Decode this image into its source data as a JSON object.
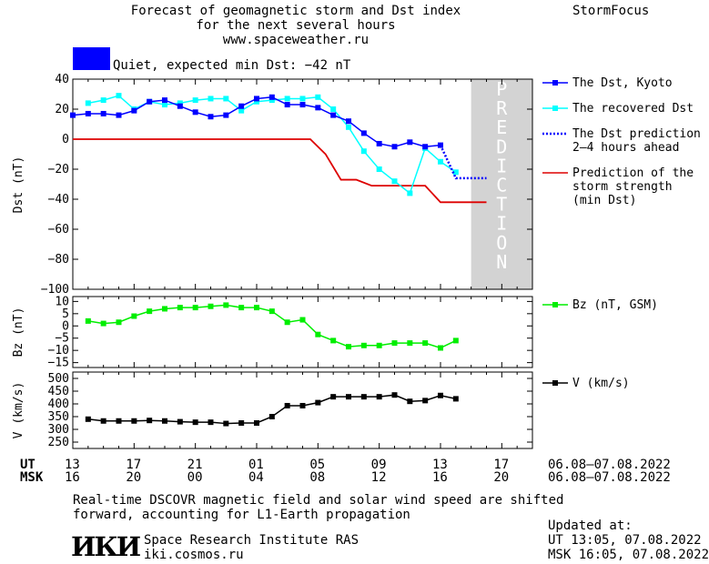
{
  "header": {
    "title_line1": "Forecast of geomagnetic storm and Dst index",
    "title_line2": "for the next several hours",
    "url": "www.spaceweather.ru",
    "brand": "StormFocus"
  },
  "status": {
    "text": "Quiet, expected min Dst: −42 nT",
    "color": "#0000ff"
  },
  "prediction_label": "PREDICTION",
  "colors": {
    "dst": "#0000ff",
    "recovered": "#00ffff",
    "prediction_line": "#dd0000",
    "bz": "#00ee00",
    "v": "#000000",
    "prediction_band": "#d3d3d3"
  },
  "chart_data": [
    {
      "type": "line",
      "ylabel": "Dst (nT)",
      "ylim": [
        -100,
        40
      ],
      "yticks": [
        40,
        20,
        0,
        -20,
        -40,
        -60,
        -80,
        -100
      ],
      "x_hours": [
        0,
        1,
        2,
        3,
        4,
        5,
        6,
        7,
        8,
        9,
        10,
        11,
        12,
        13,
        14,
        15,
        16,
        17,
        18,
        19,
        20,
        21,
        22,
        23,
        24,
        25,
        26,
        27
      ],
      "series": [
        {
          "name": "The Dst, Kyoto",
          "x": [
            0,
            1,
            2,
            3,
            4,
            5,
            6,
            7,
            8,
            9,
            10,
            11,
            12,
            13,
            14,
            15,
            16,
            17,
            18,
            19,
            20,
            21,
            22,
            23,
            24
          ],
          "values": [
            16,
            17,
            17,
            16,
            19,
            25,
            26,
            22,
            18,
            15,
            16,
            22,
            27,
            28,
            23,
            23,
            21,
            16,
            12,
            4,
            -3,
            -5,
            -2,
            -5,
            -4
          ]
        },
        {
          "name": "The recovered Dst",
          "x": [
            1,
            2,
            3,
            4,
            5,
            6,
            7,
            8,
            9,
            10,
            11,
            12,
            13,
            14,
            15,
            16,
            17,
            18,
            19,
            20,
            21,
            22,
            23,
            24,
            25
          ],
          "values": [
            24,
            26,
            29,
            20,
            25,
            23,
            24,
            26,
            27,
            27,
            19,
            25,
            26,
            27,
            27,
            28,
            20,
            8,
            -8,
            -20,
            -28,
            -36,
            -6,
            -15,
            -22
          ]
        },
        {
          "name": "The Dst prediction 2–4 hours ahead",
          "x": [
            24,
            25,
            26,
            27
          ],
          "values": [
            -4,
            -26,
            -26,
            -26
          ]
        },
        {
          "name": "Prediction of the storm strength (min Dst)",
          "x": [
            0,
            15.5,
            16.5,
            17.5,
            18.5,
            19.5,
            23,
            24,
            27
          ],
          "values": [
            0,
            0,
            -10,
            -27,
            -27,
            -31,
            -31,
            -42,
            -42
          ]
        }
      ],
      "legend": [
        {
          "lines": [
            "The Dst, Kyoto"
          ],
          "style": "line-marker",
          "color": "#0000ff"
        },
        {
          "lines": [
            "The recovered Dst"
          ],
          "style": "line-marker",
          "color": "#00ffff"
        },
        {
          "lines": [
            "The Dst prediction",
            "2–4 hours ahead"
          ],
          "style": "dotted",
          "color": "#0000ff"
        },
        {
          "lines": [
            "Prediction of the",
            "storm strength",
            "(min Dst)"
          ],
          "style": "line",
          "color": "#dd0000"
        }
      ]
    },
    {
      "type": "line",
      "ylabel": "Bz (nT)",
      "ylim": [
        -17,
        12
      ],
      "yticks": [
        10,
        5,
        0,
        -5,
        -10,
        -15
      ],
      "ytick_labels": [
        "10",
        "5",
        "0",
        "−5",
        "−10",
        "−15"
      ],
      "series": [
        {
          "name": "Bz (nT, GSM)",
          "x": [
            1,
            2,
            3,
            4,
            5,
            6,
            7,
            8,
            9,
            10,
            11,
            12,
            13,
            14,
            15,
            16,
            17,
            18,
            19,
            20,
            21,
            22,
            23,
            24,
            25
          ],
          "values": [
            2,
            1,
            1.5,
            4,
            6,
            7,
            7.5,
            7.5,
            8,
            8.5,
            7.5,
            7.5,
            6,
            1.5,
            2.5,
            -3.5,
            -6,
            -8.5,
            -8,
            -8,
            -7,
            -7,
            -7,
            -9,
            -6
          ]
        }
      ],
      "legend": [
        {
          "lines": [
            "Bz (nT, GSM)"
          ],
          "style": "line-marker",
          "color": "#00ee00"
        }
      ]
    },
    {
      "type": "line",
      "ylabel": "V (km/s)",
      "ylim": [
        225,
        525
      ],
      "yticks": [
        500,
        450,
        400,
        350,
        300,
        250
      ],
      "series": [
        {
          "name": "V (km/s)",
          "x": [
            1,
            2,
            3,
            4,
            5,
            6,
            7,
            8,
            9,
            10,
            11,
            12,
            13,
            14,
            15,
            16,
            17,
            18,
            19,
            20,
            21,
            22,
            23,
            24,
            25
          ],
          "values": [
            340,
            333,
            333,
            333,
            335,
            333,
            330,
            328,
            328,
            323,
            325,
            325,
            350,
            393,
            393,
            405,
            428,
            428,
            428,
            428,
            435,
            410,
            413,
            433,
            420
          ]
        }
      ],
      "legend": [
        {
          "lines": [
            "V (km/s)"
          ],
          "style": "line-marker",
          "color": "#000000"
        }
      ]
    }
  ],
  "time_axis": {
    "ut_label": "UT",
    "msk_label": "MSK",
    "ut_ticks": [
      "13",
      "17",
      "21",
      "01",
      "05",
      "09",
      "13",
      "17"
    ],
    "msk_ticks": [
      "16",
      "20",
      "00",
      "04",
      "08",
      "12",
      "16",
      "20"
    ],
    "ut_range": "06.08–07.08.2022",
    "msk_range": "06.08–07.08.2022"
  },
  "footer": {
    "note_line1": "Real-time DSCOVR magnetic field and solar wind speed are shifted",
    "note_line2": "forward, accounting for L1-Earth propagation",
    "logo": "ИКИ",
    "institute": "Space Research Institute RAS",
    "site": "iki.cosmos.ru",
    "updated_label": "Updated at:",
    "updated_ut": "UT  13:05, 07.08.2022",
    "updated_msk": "MSK 16:05, 07.08.2022"
  }
}
